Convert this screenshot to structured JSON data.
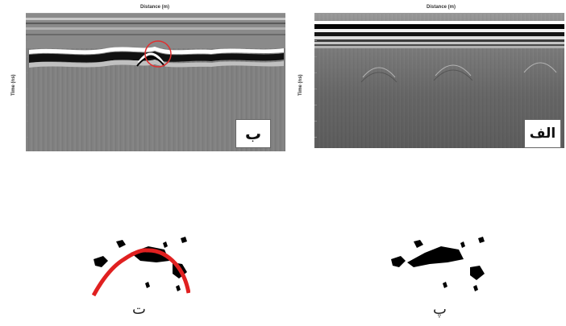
{
  "panels": {
    "left_top": {
      "xlabel": "Distance (m)",
      "ylabel": "Time (ns)",
      "badge": "ب"
    },
    "right_top": {
      "xlabel": "Distance (m)",
      "ylabel": "Time (ns)",
      "badge": "الف"
    },
    "left_bottom": {
      "caption": "ت"
    },
    "right_bottom": {
      "caption": "پ"
    }
  },
  "highlight": {
    "circle_color": "#e03030",
    "hyperbola_color": "#e02020"
  }
}
